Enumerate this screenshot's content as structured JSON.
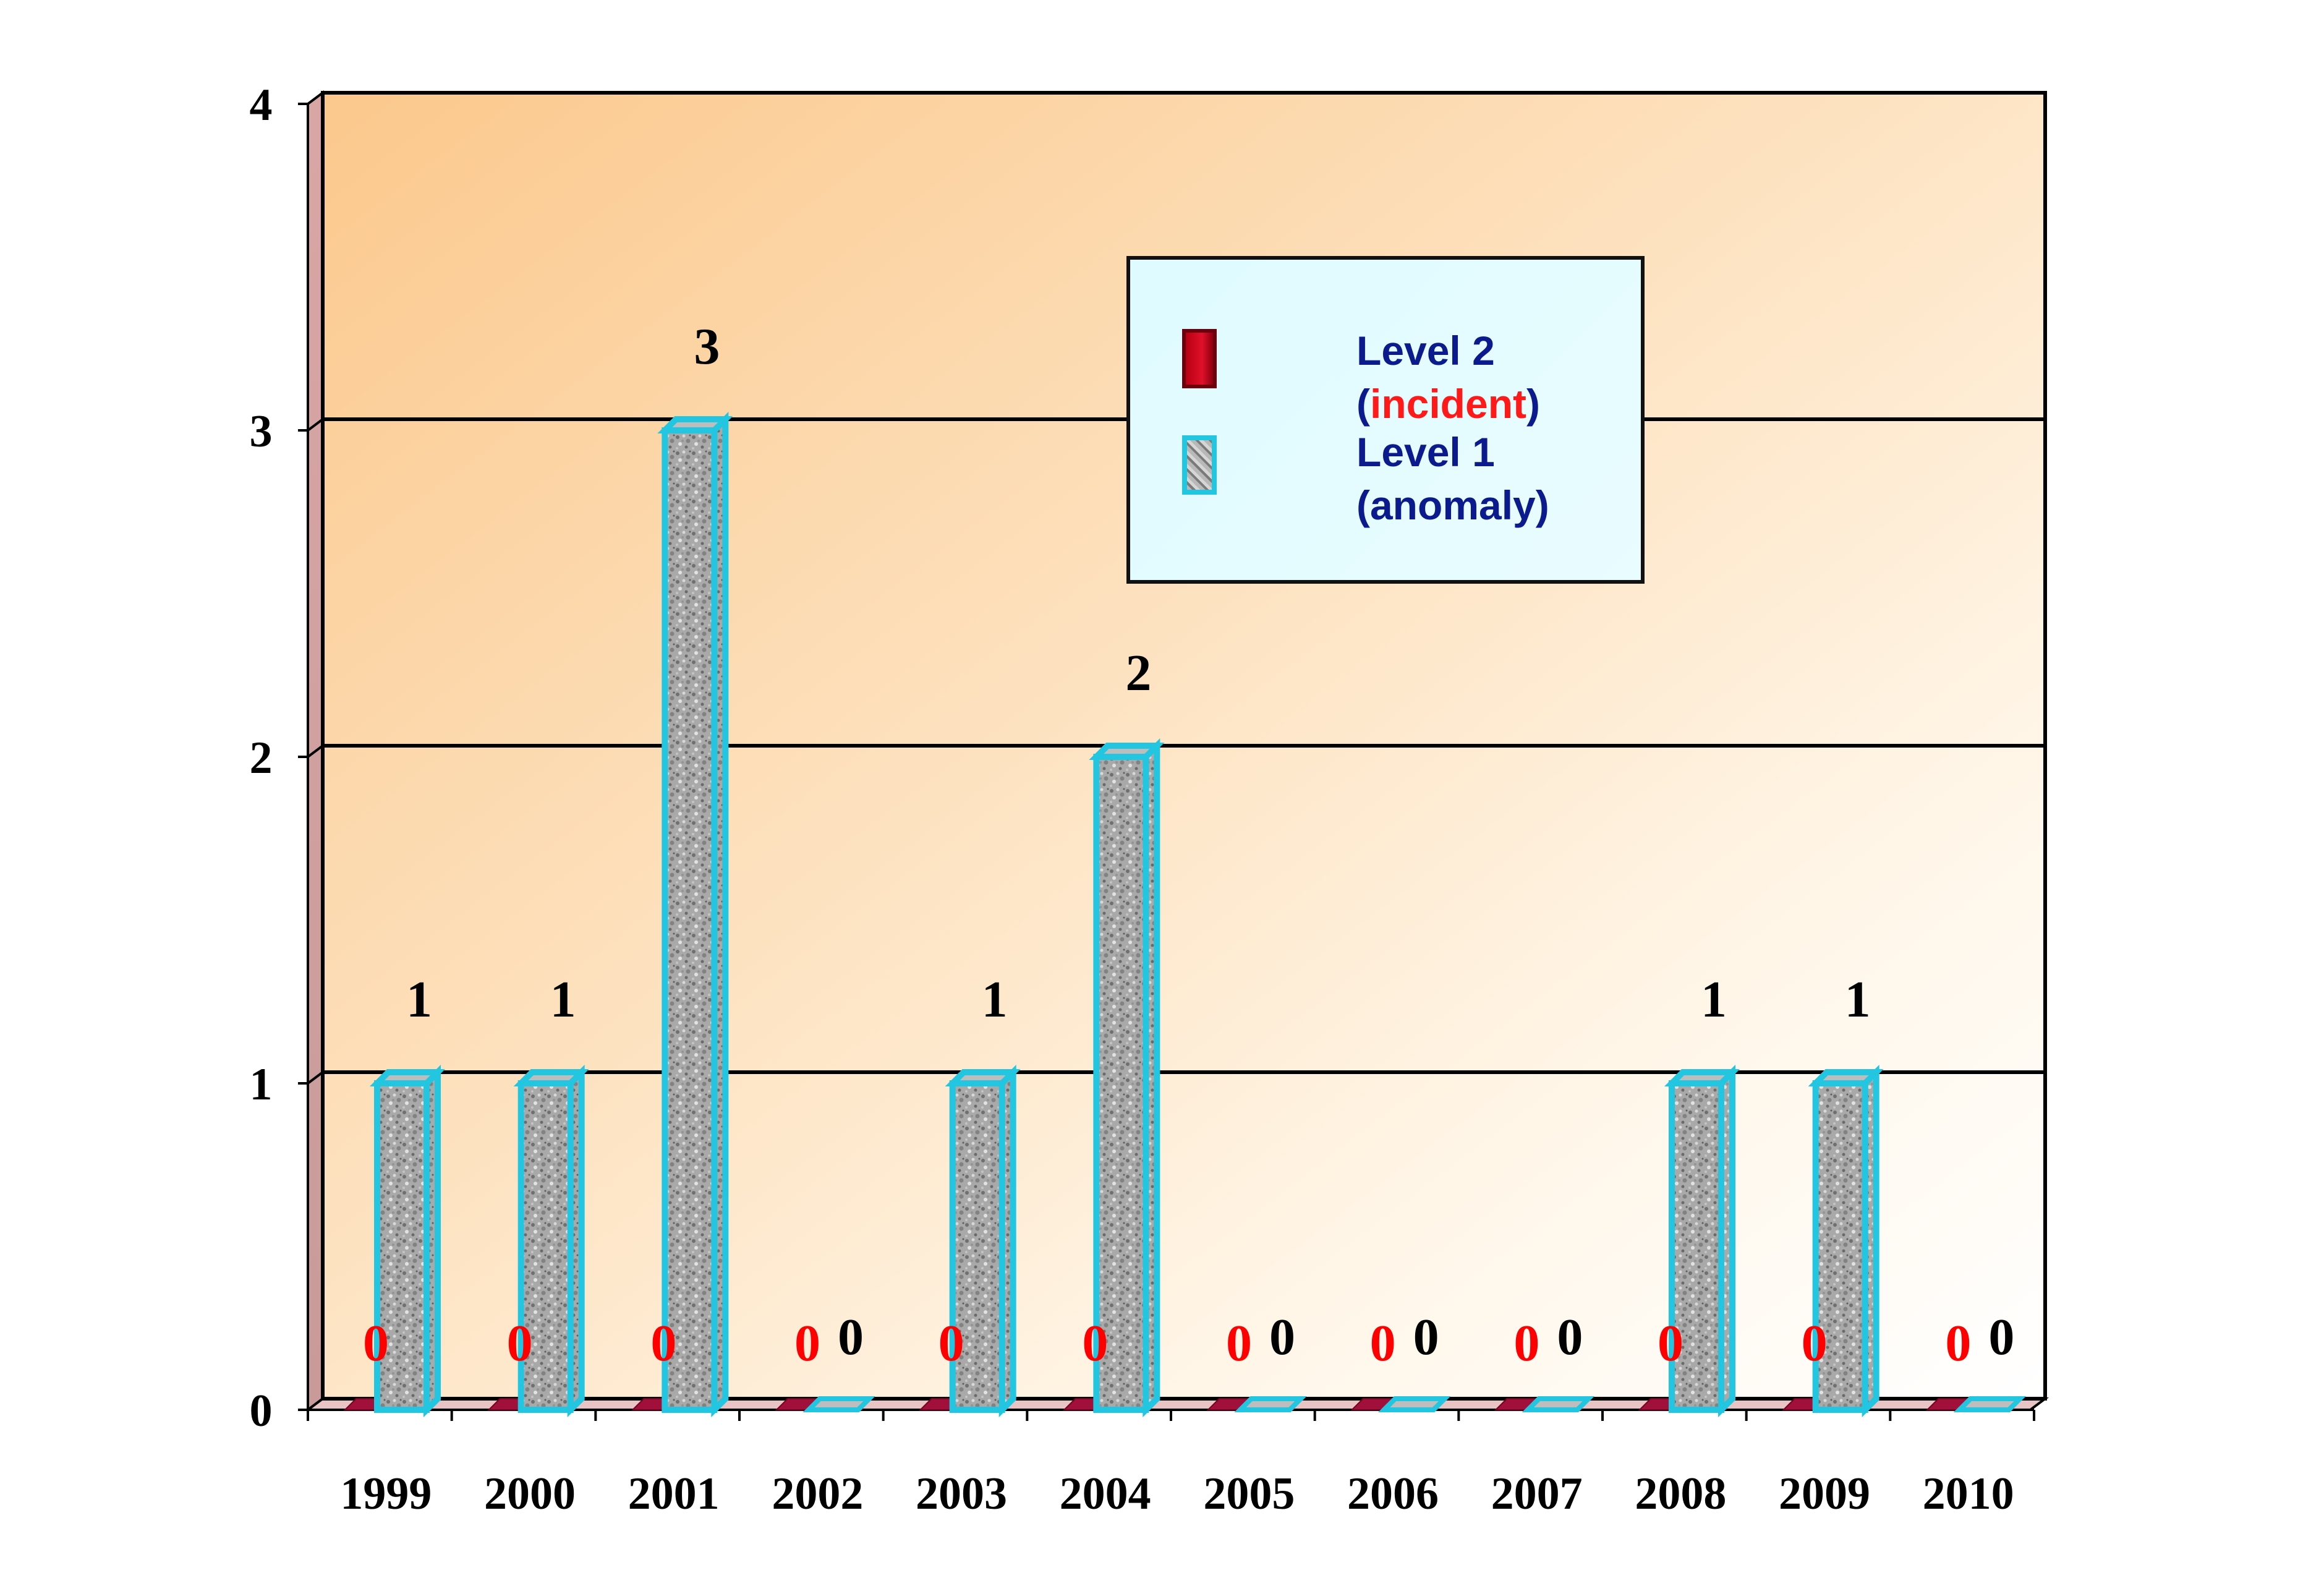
{
  "chart_data": {
    "type": "bar",
    "categories": [
      "1999",
      "2000",
      "2001",
      "2002",
      "2003",
      "2004",
      "2005",
      "2006",
      "2007",
      "2008",
      "2009",
      "2010"
    ],
    "series": [
      {
        "name": "Level 2 (incident)",
        "values": [
          0,
          0,
          0,
          0,
          0,
          0,
          0,
          0,
          0,
          0,
          0,
          0
        ],
        "color": "#c8001a",
        "label_color": "#ff0000"
      },
      {
        "name": "Level 1 (anomaly)",
        "values": [
          1,
          1,
          3,
          0,
          1,
          2,
          0,
          0,
          0,
          1,
          1,
          0
        ],
        "color": "#22c6e0",
        "label_color": "#000000"
      }
    ],
    "ylim": [
      0,
      4
    ],
    "yticks": [
      "0",
      "1",
      "2",
      "3",
      "4"
    ],
    "grid": true,
    "legend_position": "top-right",
    "title": "",
    "xlabel": "",
    "ylabel": ""
  },
  "legend": {
    "level2_line1": "Level 2",
    "level2_open": "(",
    "level2_word": "incident",
    "level2_close": ")",
    "level1_line1": "Level 1",
    "level1_line2": "(anomaly)"
  }
}
